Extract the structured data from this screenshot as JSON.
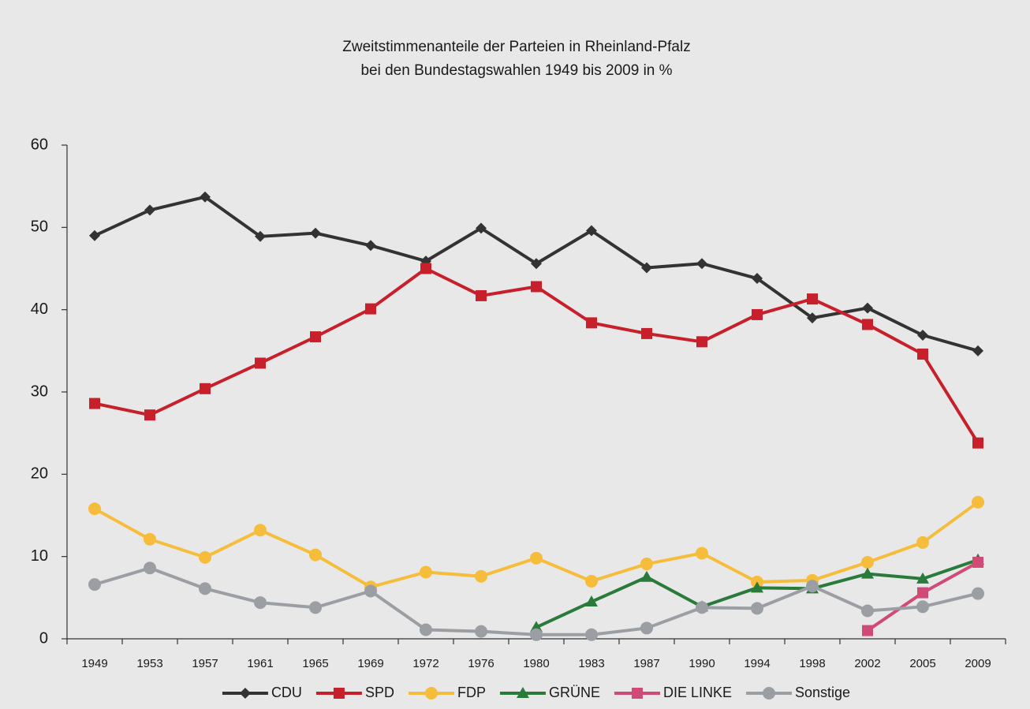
{
  "chart_data": {
    "type": "line",
    "title": [
      "Zweitstimmenanteile der Parteien in Rheinland-Pfalz",
      "bei den Bundestagswahlen 1949 bis 2009 in %"
    ],
    "categories": [
      "1949",
      "1953",
      "1957",
      "1961",
      "1965",
      "1969",
      "1972",
      "1976",
      "1980",
      "1983",
      "1987",
      "1990",
      "1994",
      "1998",
      "2002",
      "2005",
      "2009"
    ],
    "ylim": [
      0,
      60
    ],
    "yticks": [
      0,
      10,
      20,
      30,
      40,
      50,
      60
    ],
    "grid": false,
    "legend": "bottom",
    "series": [
      {
        "name": "CDU",
        "color": "#333333",
        "marker": "diamond",
        "values": [
          49.0,
          52.1,
          53.7,
          48.9,
          49.3,
          47.8,
          45.9,
          49.9,
          45.6,
          49.6,
          45.1,
          45.6,
          43.8,
          39.0,
          40.2,
          36.9,
          35.0
        ]
      },
      {
        "name": "SPD",
        "color": "#c8202a",
        "marker": "square",
        "values": [
          28.6,
          27.2,
          30.4,
          33.5,
          36.7,
          40.1,
          45.0,
          41.7,
          42.8,
          38.4,
          37.1,
          36.1,
          39.4,
          41.3,
          38.2,
          34.6,
          23.8
        ]
      },
      {
        "name": "FDP",
        "color": "#f5bd3b",
        "marker": "circle",
        "values": [
          15.8,
          12.1,
          9.9,
          13.2,
          10.2,
          6.3,
          8.1,
          7.6,
          9.8,
          7.0,
          9.1,
          10.4,
          6.9,
          7.1,
          9.3,
          11.7,
          16.6
        ]
      },
      {
        "name": "GRÜNE",
        "color": "#2a7a3a",
        "marker": "triangle",
        "values": [
          null,
          null,
          null,
          null,
          null,
          null,
          null,
          null,
          1.4,
          4.5,
          7.5,
          3.9,
          6.2,
          6.1,
          7.9,
          7.3,
          9.6
        ]
      },
      {
        "name": "DIE LINKE",
        "color": "#d04a75",
        "marker": "square",
        "values": [
          null,
          null,
          null,
          null,
          null,
          null,
          null,
          null,
          null,
          null,
          null,
          null,
          null,
          null,
          1.0,
          5.6,
          9.3
        ]
      },
      {
        "name": "Sonstige",
        "color": "#9b9ea3",
        "marker": "circle",
        "values": [
          6.6,
          8.6,
          6.1,
          4.4,
          3.8,
          5.8,
          1.1,
          0.9,
          0.5,
          0.5,
          1.3,
          3.8,
          3.7,
          6.4,
          3.4,
          3.9,
          5.5
        ]
      }
    ]
  }
}
